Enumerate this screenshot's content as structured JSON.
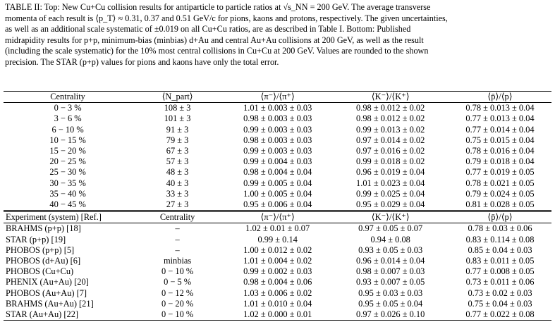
{
  "caption": {
    "lines": [
      "TABLE II: Top: New Cu+Cu collision results for antiparticle to particle ratios at √s_NN = 200 GeV. The average transverse",
      "momenta of each result is ⟨p_T⟩ ≈ 0.31, 0.37 and 0.51 GeV/c for pions, kaons and protons, respectively. The given uncertainties,",
      "as well as an additional scale systematic of ±0.019 on all Cu+Cu ratios, are as described in Table I. Bottom: Published",
      "midrapidity results for p+p, minimum-bias (minbias) d+Au and central Au+Au collisions at 200 GeV, as well as the result",
      "(including the scale systematic) for the 10% most central collisions in Cu+Cu at 200 GeV. Values are rounded to the shown",
      "precision. The STAR (p+p) values for pions and kaons have only the total error."
    ]
  },
  "top_table": {
    "headers": [
      "Centrality",
      "⟨N_part⟩",
      "⟨π⁻⟩/⟨π⁺⟩",
      "⟨K⁻⟩/⟨K⁺⟩",
      "⟨p̄⟩/⟨p⟩"
    ],
    "rows": [
      [
        "0 − 3 %",
        "108 ± 3",
        "1.01 ± 0.003 ± 0.03",
        "0.98 ± 0.012 ± 0.02",
        "0.78 ± 0.013 ± 0.04"
      ],
      [
        "3 − 6 %",
        "101 ± 3",
        "0.98 ± 0.003 ± 0.03",
        "0.98 ± 0.012 ± 0.02",
        "0.77 ± 0.013 ± 0.04"
      ],
      [
        "6 − 10 %",
        "91 ± 3",
        "0.99 ± 0.003 ± 0.03",
        "0.99 ± 0.013 ± 0.02",
        "0.77 ± 0.014 ± 0.04"
      ],
      [
        "10 − 15 %",
        "79 ± 3",
        "0.98 ± 0.003 ± 0.03",
        "0.97 ± 0.014 ± 0.02",
        "0.75 ± 0.015 ± 0.04"
      ],
      [
        "15 − 20 %",
        "67 ± 3",
        "0.99 ± 0.003 ± 0.03",
        "0.97 ± 0.016 ± 0.02",
        "0.78 ± 0.016 ± 0.04"
      ],
      [
        "20 − 25 %",
        "57 ± 3",
        "0.99 ± 0.004 ± 0.03",
        "0.99 ± 0.018 ± 0.02",
        "0.79 ± 0.018 ± 0.04"
      ],
      [
        "25 − 30 %",
        "48 ± 3",
        "0.98 ± 0.004 ± 0.04",
        "0.96 ± 0.019 ± 0.04",
        "0.77 ± 0.019 ± 0.05"
      ],
      [
        "30 − 35 %",
        "40 ± 3",
        "0.99 ± 0.005 ± 0.04",
        "1.01 ± 0.023 ± 0.04",
        "0.78 ± 0.021 ± 0.05"
      ],
      [
        "35 − 40 %",
        "33 ± 3",
        "1.00 ± 0.005 ± 0.04",
        "0.99 ± 0.025 ± 0.04",
        "0.79 ± 0.024 ± 0.05"
      ],
      [
        "40 − 45 %",
        "27 ± 3",
        "0.95 ± 0.006 ± 0.04",
        "0.95 ± 0.029 ± 0.04",
        "0.81 ± 0.028 ± 0.05"
      ]
    ]
  },
  "bottom_table": {
    "headers": [
      "Experiment (system) [Ref.]",
      "Centrality",
      "⟨π⁻⟩/⟨π⁺⟩",
      "⟨K⁻⟩/⟨K⁺⟩",
      "⟨p̄⟩/⟨p⟩"
    ],
    "rows": [
      [
        "BRAHMS (p+p) [18]",
        "–",
        "1.02 ± 0.01 ± 0.07",
        "0.97 ± 0.05 ± 0.07",
        "0.78 ± 0.03 ± 0.06"
      ],
      [
        "STAR (p+p) [19]",
        "–",
        "0.99 ± 0.14",
        "0.94 ± 0.08",
        "0.83 ± 0.114 ± 0.08"
      ],
      [
        "PHOBOS (p+p) [5]",
        "–",
        "1.00 ± 0.012 ± 0.02",
        "0.93 ± 0.05 ± 0.03",
        "0.85 ± 0.04 ± 0.03"
      ],
      [
        "PHOBOS (d+Au) [6]",
        "minbias",
        "1.01 ± 0.004 ± 0.02",
        "0.96 ± 0.014 ± 0.04",
        "0.83 ± 0.011 ± 0.05"
      ],
      [
        "PHOBOS (Cu+Cu)",
        "0 − 10 %",
        "0.99 ± 0.002 ± 0.03",
        "0.98 ± 0.007 ± 0.03",
        "0.77 ± 0.008 ± 0.05"
      ],
      [
        "PHENIX (Au+Au) [20]",
        "0 − 5 %",
        "0.98 ± 0.004 ± 0.06",
        "0.93 ± 0.007 ± 0.05",
        "0.73 ± 0.011 ± 0.06"
      ],
      [
        "PHOBOS (Au+Au) [7]",
        "0 − 12 %",
        "1.03 ± 0.006 ± 0.02",
        "0.95 ± 0.03 ± 0.03",
        "0.73 ± 0.02 ± 0.03"
      ],
      [
        "BRAHMS (Au+Au) [21]",
        "0 − 20 %",
        "1.01 ± 0.010 ± 0.04",
        "0.95 ± 0.05 ± 0.04",
        "0.75 ± 0.04 ± 0.03"
      ],
      [
        "STAR (Au+Au) [22]",
        "0 − 10 %",
        "1.02 ± 0.000 ± 0.01",
        "0.97 ± 0.026 ± 0.10",
        "0.77 ± 0.022 ± 0.08"
      ]
    ]
  }
}
